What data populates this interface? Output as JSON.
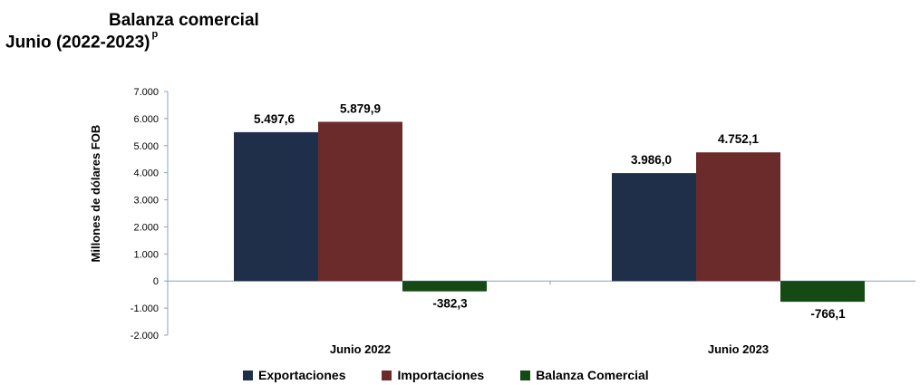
{
  "title": "Balanza comercial",
  "subtitle": "Junio (2022-2023)",
  "subtitle_mark": "p",
  "chart_data": {
    "type": "bar",
    "categories": [
      "Junio 2022",
      "Junio 2023"
    ],
    "series": [
      {
        "name": "Exportaciones",
        "values": [
          5497.6,
          3986.0
        ],
        "labels": [
          "5.497,6",
          "3.986,0"
        ],
        "color": "#1f2f4a"
      },
      {
        "name": "Importaciones",
        "values": [
          5879.9,
          4752.1
        ],
        "labels": [
          "5.879,9",
          "4.752,1"
        ],
        "color": "#6b2b2b"
      },
      {
        "name": "Balanza Comercial",
        "values": [
          -382.3,
          -766.1
        ],
        "labels": [
          "-382,3",
          "-766,1"
        ],
        "color": "#154a15"
      }
    ],
    "ylabel": "Millones de dólares FOB",
    "ylim": [
      -2000,
      7000
    ],
    "yticks": [
      7000,
      6000,
      5000,
      4000,
      3000,
      2000,
      1000,
      0,
      -1000,
      -2000
    ],
    "ytick_labels": [
      "7.000",
      "6.000",
      "5.000",
      "4.000",
      "3.000",
      "2.000",
      "1.000",
      "0",
      "-1.000",
      "-2.000"
    ],
    "legend_position": "bottom",
    "grid": false
  }
}
